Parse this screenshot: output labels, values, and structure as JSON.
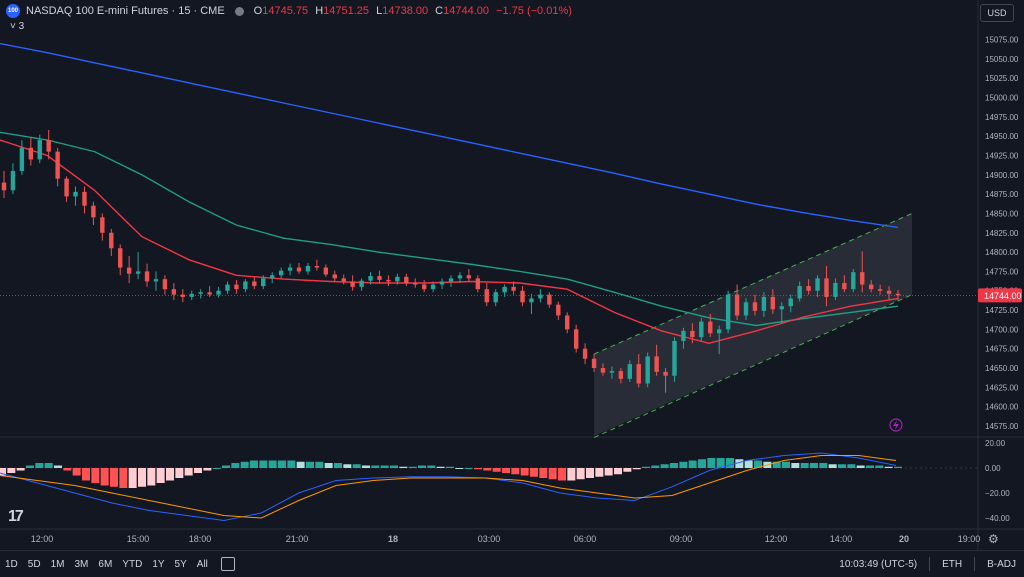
{
  "header": {
    "badge": "100",
    "symbol": "NASDAQ 100 E-mini Futures · 15 · CME",
    "ohlc": [
      {
        "k": "O",
        "v": "14745.75"
      },
      {
        "k": "H",
        "v": "14751.25"
      },
      {
        "k": "L",
        "v": "14738.00"
      },
      {
        "k": "C",
        "v": "14744.00"
      },
      {
        "k": "",
        "v": "−1.75 (−0.01%)"
      }
    ],
    "indicators_collapsed": "˅ 3",
    "currency": "USD"
  },
  "colors": {
    "background": "#131722",
    "up": "#26a69a",
    "down": "#ef5350",
    "ma_long": "#2962ff",
    "ma_mid": "#1e9e83",
    "ma_short": "#f23645",
    "macd_line": "#2962ff",
    "signal_line": "#ff9800",
    "channel_line": "#4caf50",
    "price_label": "#f23645"
  },
  "chart_data": [
    {
      "type": "candlestick",
      "title": "NASDAQ 100 E-mini Futures · 15 · CME",
      "y_ticks": [
        "15075.00",
        "15050.00",
        "15025.00",
        "15000.00",
        "14975.00",
        "14950.00",
        "14925.00",
        "14900.00",
        "14875.00",
        "14850.00",
        "14825.00",
        "14800.00",
        "14775.00",
        "14750.00",
        "14725.00",
        "14700.00",
        "14675.00",
        "14650.00",
        "14625.00",
        "14600.00",
        "14575.00"
      ],
      "ylim": [
        14562,
        15090
      ],
      "current_price": 14744.0,
      "current_price_label": "14744.00",
      "x_ticks": [
        "12:00",
        "15:00",
        "18:00",
        "21:00",
        "18",
        "03:00",
        "06:00",
        "09:00",
        "12:00",
        "14:00",
        "20",
        "19:00"
      ],
      "candles": [
        [
          14890,
          14905,
          14870,
          14880
        ],
        [
          14880,
          14915,
          14875,
          14905
        ],
        [
          14905,
          14945,
          14900,
          14935
        ],
        [
          14935,
          14948,
          14912,
          14920
        ],
        [
          14920,
          14952,
          14915,
          14945
        ],
        [
          14945,
          14958,
          14920,
          14930
        ],
        [
          14930,
          14935,
          14885,
          14895
        ],
        [
          14895,
          14898,
          14865,
          14872
        ],
        [
          14872,
          14885,
          14860,
          14878
        ],
        [
          14878,
          14885,
          14850,
          14860
        ],
        [
          14860,
          14865,
          14835,
          14845
        ],
        [
          14845,
          14850,
          14815,
          14825
        ],
        [
          14825,
          14830,
          14795,
          14805
        ],
        [
          14805,
          14810,
          14770,
          14780
        ],
        [
          14780,
          14795,
          14760,
          14772
        ],
        [
          14772,
          14800,
          14765,
          14775
        ],
        [
          14775,
          14785,
          14755,
          14762
        ],
        [
          14762,
          14775,
          14750,
          14765
        ],
        [
          14765,
          14770,
          14745,
          14752
        ],
        [
          14752,
          14760,
          14738,
          14745
        ],
        [
          14745,
          14752,
          14735,
          14742
        ],
        [
          14742,
          14750,
          14738,
          14746
        ],
        [
          14746,
          14752,
          14740,
          14748
        ],
        [
          14748,
          14756,
          14742,
          14745
        ],
        [
          14745,
          14755,
          14741,
          14750
        ],
        [
          14750,
          14762,
          14746,
          14758
        ],
        [
          14758,
          14764,
          14746,
          14752
        ],
        [
          14752,
          14765,
          14748,
          14762
        ],
        [
          14762,
          14768,
          14752,
          14756
        ],
        [
          14756,
          14770,
          14752,
          14766
        ],
        [
          14766,
          14774,
          14760,
          14770
        ],
        [
          14770,
          14780,
          14766,
          14776
        ],
        [
          14776,
          14785,
          14770,
          14780
        ],
        [
          14780,
          14786,
          14772,
          14775
        ],
        [
          14775,
          14786,
          14771,
          14782
        ],
        [
          14782,
          14790,
          14776,
          14780
        ],
        [
          14780,
          14784,
          14768,
          14771
        ],
        [
          14771,
          14776,
          14762,
          14766
        ],
        [
          14766,
          14771,
          14758,
          14762
        ],
        [
          14762,
          14770,
          14750,
          14755
        ],
        [
          14755,
          14766,
          14750,
          14763
        ],
        [
          14763,
          14774,
          14758,
          14769
        ],
        [
          14769,
          14776,
          14760,
          14764
        ],
        [
          14764,
          14770,
          14756,
          14762
        ],
        [
          14762,
          14772,
          14758,
          14768
        ],
        [
          14768,
          14772,
          14756,
          14760
        ],
        [
          14760,
          14766,
          14754,
          14758
        ],
        [
          14758,
          14764,
          14748,
          14752
        ],
        [
          14752,
          14762,
          14748,
          14758
        ],
        [
          14758,
          14766,
          14752,
          14762
        ],
        [
          14762,
          14770,
          14755,
          14766
        ],
        [
          14766,
          14774,
          14760,
          14770
        ],
        [
          14770,
          14778,
          14762,
          14766
        ],
        [
          14766,
          14770,
          14748,
          14752
        ],
        [
          14752,
          14760,
          14730,
          14735
        ],
        [
          14735,
          14752,
          14730,
          14748
        ],
        [
          14748,
          14758,
          14742,
          14755
        ],
        [
          14755,
          14762,
          14745,
          14750
        ],
        [
          14750,
          14756,
          14730,
          14735
        ],
        [
          14735,
          14746,
          14720,
          14740
        ],
        [
          14740,
          14752,
          14735,
          14745
        ],
        [
          14745,
          14748,
          14728,
          14732
        ],
        [
          14732,
          14736,
          14712,
          14718
        ],
        [
          14718,
          14722,
          14695,
          14700
        ],
        [
          14700,
          14706,
          14670,
          14675
        ],
        [
          14675,
          14682,
          14655,
          14662
        ],
        [
          14662,
          14668,
          14645,
          14650
        ],
        [
          14650,
          14656,
          14640,
          14644
        ],
        [
          14644,
          14652,
          14636,
          14646
        ],
        [
          14646,
          14650,
          14630,
          14636
        ],
        [
          14636,
          14660,
          14632,
          14655
        ],
        [
          14655,
          14668,
          14625,
          14630
        ],
        [
          14630,
          14670,
          14625,
          14665
        ],
        [
          14665,
          14680,
          14640,
          14645
        ],
        [
          14645,
          14650,
          14618,
          14640
        ],
        [
          14640,
          14690,
          14632,
          14685
        ],
        [
          14685,
          14702,
          14675,
          14698
        ],
        [
          14698,
          14708,
          14682,
          14690
        ],
        [
          14690,
          14715,
          14685,
          14710
        ],
        [
          14710,
          14720,
          14690,
          14695
        ],
        [
          14695,
          14705,
          14668,
          14700
        ],
        [
          14700,
          14750,
          14695,
          14745
        ],
        [
          14745,
          14758,
          14712,
          14718
        ],
        [
          14718,
          14740,
          14712,
          14735
        ],
        [
          14735,
          14745,
          14718,
          14724
        ],
        [
          14724,
          14748,
          14716,
          14742
        ],
        [
          14742,
          14752,
          14720,
          14726
        ],
        [
          14726,
          14735,
          14708,
          14730
        ],
        [
          14730,
          14745,
          14722,
          14740
        ],
        [
          14740,
          14762,
          14736,
          14756
        ],
        [
          14756,
          14765,
          14745,
          14750
        ],
        [
          14750,
          14770,
          14742,
          14766
        ],
        [
          14766,
          14782,
          14730,
          14742
        ],
        [
          14742,
          14766,
          14738,
          14760
        ],
        [
          14760,
          14770,
          14748,
          14752
        ],
        [
          14752,
          14778,
          14748,
          14774
        ],
        [
          14774,
          14801,
          14748,
          14758
        ],
        [
          14758,
          14764,
          14748,
          14752
        ],
        [
          14752,
          14758,
          14745,
          14750
        ],
        [
          14750,
          14756,
          14738,
          14746
        ],
        [
          14746,
          14751,
          14738,
          14744
        ]
      ],
      "ma_long": [
        15070,
        15058,
        15045,
        15032,
        15019,
        15006,
        14993,
        14980,
        14967,
        14954,
        14941,
        14928,
        14915,
        14902,
        14888,
        14875,
        14862,
        14851,
        14841,
        14832
      ],
      "ma_mid": [
        14955,
        14945,
        14930,
        14900,
        14865,
        14835,
        14818,
        14810,
        14800,
        14792,
        14784,
        14775,
        14765,
        14748,
        14730,
        14715,
        14705,
        14714,
        14722,
        14730
      ],
      "ma_short": [
        14945,
        14925,
        14880,
        14820,
        14790,
        14770,
        14765,
        14762,
        14760,
        14760,
        14762,
        14760,
        14752,
        14722,
        14698,
        14682,
        14698,
        14716,
        14730,
        14740
      ],
      "channel": {
        "upper": [
          [
            0.0,
            14668
          ],
          [
            1.0,
            14850
          ]
        ],
        "lower": [
          [
            0.0,
            14560
          ],
          [
            1.0,
            14745
          ]
        ],
        "start_index": 66
      }
    },
    {
      "type": "macd",
      "y_ticks": [
        "20.00",
        "0.00",
        "−20.00",
        "−40.00"
      ],
      "ylim": [
        -48,
        24
      ],
      "histogram": [
        -6,
        -4,
        -2,
        2,
        4,
        4,
        2,
        -2,
        -6,
        -10,
        -12,
        -14,
        -15,
        -16,
        -16,
        -15,
        -14,
        -12,
        -10,
        -8,
        -6,
        -4,
        -2,
        0,
        2,
        4,
        5,
        6,
        6,
        6,
        6,
        6,
        5,
        5,
        5,
        4,
        4,
        3,
        3,
        2,
        2,
        2,
        2,
        1,
        1,
        2,
        2,
        1,
        1,
        0,
        0,
        -1,
        -2,
        -3,
        -4,
        -5,
        -6,
        -7,
        -8,
        -9,
        -10,
        -10,
        -9,
        -8,
        -7,
        -6,
        -5,
        -3,
        -1,
        1,
        2,
        3,
        4,
        5,
        6,
        7,
        8,
        8,
        8,
        7,
        6,
        6,
        5,
        5,
        5,
        4,
        4,
        4,
        4,
        3,
        3,
        3,
        2,
        2,
        2,
        1,
        1
      ],
      "macd_line": [
        -4,
        -12,
        -20,
        -28,
        -34,
        -38,
        -42,
        -36,
        -20,
        -10,
        -8,
        -7,
        -7,
        -8,
        -12,
        -20,
        -24,
        -26,
        -15,
        -2,
        6,
        10,
        12,
        8,
        2
      ],
      "signal_line": [
        -6,
        -10,
        -14,
        -20,
        -26,
        -32,
        -38,
        -40,
        -26,
        -14,
        -10,
        -8,
        -8,
        -8,
        -10,
        -16,
        -20,
        -24,
        -22,
        -12,
        -2,
        6,
        10,
        10,
        6
      ]
    }
  ],
  "bottom": {
    "timeframes": [
      "1D",
      "5D",
      "1M",
      "3M",
      "6M",
      "YTD",
      "1Y",
      "5Y",
      "All"
    ],
    "clock": "10:03:49 (UTC-5)",
    "session": "ETH",
    "adjust": "B-ADJ"
  }
}
